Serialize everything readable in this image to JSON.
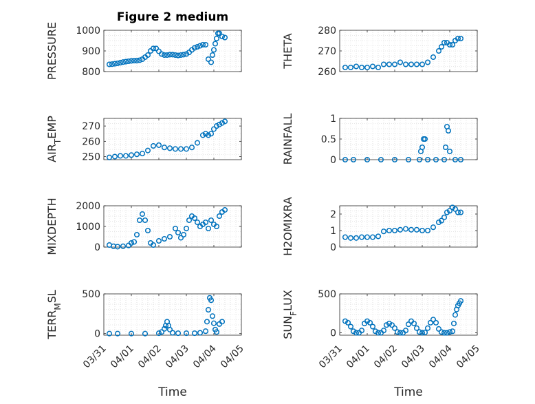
{
  "title": "Figure 2 medium",
  "xlabel": "Time",
  "xticks": [
    "03/31",
    "04/01",
    "04/02",
    "04/03",
    "04/04",
    "04/05"
  ],
  "marker_color": "#0072BD",
  "chart_data": [
    {
      "type": "scatter",
      "ylabel": "PRESSURE",
      "ylim": [
        800,
        1000
      ],
      "yticks": [
        "800",
        "900",
        "1000"
      ],
      "x": [
        0.2,
        0.3,
        0.4,
        0.5,
        0.6,
        0.7,
        0.8,
        0.9,
        1.0,
        1.1,
        1.2,
        1.3,
        1.4,
        1.5,
        1.6,
        1.7,
        1.8,
        1.9,
        2.0,
        2.1,
        2.2,
        2.3,
        2.4,
        2.5,
        2.6,
        2.7,
        2.8,
        2.9,
        3.0,
        3.1,
        3.2,
        3.3,
        3.4,
        3.5,
        3.6,
        3.7,
        3.8,
        3.9,
        3.95,
        4.0,
        4.05,
        4.1,
        4.15,
        4.2,
        4.3,
        4.4
      ],
      "y": [
        835,
        836,
        838,
        840,
        843,
        846,
        848,
        850,
        852,
        853,
        853,
        855,
        860,
        870,
        880,
        900,
        912,
        912,
        898,
        885,
        880,
        880,
        882,
        882,
        880,
        878,
        880,
        882,
        885,
        893,
        905,
        915,
        920,
        925,
        930,
        930,
        860,
        845,
        880,
        905,
        935,
        960,
        985,
        985,
        970,
        965
      ]
    },
    {
      "type": "scatter",
      "ylabel": "THETA",
      "ylim": [
        260,
        280
      ],
      "yticks": [
        "260",
        "270",
        "280"
      ],
      "x": [
        0.2,
        0.4,
        0.6,
        0.8,
        1.0,
        1.2,
        1.4,
        1.6,
        1.8,
        2.0,
        2.2,
        2.4,
        2.6,
        2.8,
        3.0,
        3.2,
        3.4,
        3.6,
        3.7,
        3.8,
        3.9,
        4.0,
        4.1,
        4.2,
        4.3,
        4.4
      ],
      "y": [
        262,
        262,
        262.5,
        262,
        262,
        262.5,
        262,
        263.5,
        263.5,
        263.5,
        264.5,
        263.5,
        263.5,
        263.5,
        263.5,
        264.5,
        267,
        270,
        272,
        274,
        274,
        273,
        273,
        275,
        276,
        276
      ]
    },
    {
      "type": "scatter",
      "ylabel": "AIR_TEMP",
      "ylim": [
        248,
        275
      ],
      "yticks": [
        "250",
        "260",
        "270"
      ],
      "x": [
        0.2,
        0.4,
        0.6,
        0.8,
        1.0,
        1.2,
        1.4,
        1.6,
        1.8,
        2.0,
        2.2,
        2.4,
        2.6,
        2.8,
        3.0,
        3.2,
        3.4,
        3.6,
        3.7,
        3.8,
        3.9,
        4.0,
        4.1,
        4.2,
        4.3,
        4.4
      ],
      "y": [
        249.5,
        250,
        250.5,
        250.5,
        251,
        251.5,
        252,
        254,
        257,
        257.5,
        256,
        255.5,
        255,
        255,
        255,
        256,
        259,
        264,
        265,
        264,
        265,
        268,
        270,
        271,
        272,
        273
      ]
    },
    {
      "type": "scatter",
      "ylabel": "RAINFALL",
      "ylim": [
        0,
        1
      ],
      "yticks": [
        "0",
        "0.5",
        "1"
      ],
      "x": [
        0.2,
        0.5,
        1.0,
        1.5,
        2.0,
        2.5,
        2.9,
        2.95,
        3.0,
        3.05,
        3.1,
        3.2,
        3.5,
        3.8,
        3.85,
        3.9,
        3.95,
        4.0,
        4.2,
        4.4
      ],
      "y": [
        0,
        0,
        0,
        0,
        0,
        0,
        0,
        0.2,
        0.3,
        0.5,
        0.5,
        0,
        0,
        0,
        0.3,
        0.8,
        0.7,
        0.2,
        0,
        0
      ]
    },
    {
      "type": "scatter",
      "ylabel": "MIXDEPTH",
      "ylim": [
        0,
        2000
      ],
      "yticks": [
        "0",
        "1000",
        "2000"
      ],
      "x": [
        0.2,
        0.35,
        0.5,
        0.7,
        0.9,
        1.0,
        1.1,
        1.2,
        1.3,
        1.4,
        1.5,
        1.6,
        1.7,
        1.8,
        2.0,
        2.2,
        2.4,
        2.6,
        2.7,
        2.8,
        2.9,
        3.0,
        3.1,
        3.2,
        3.3,
        3.4,
        3.5,
        3.6,
        3.7,
        3.8,
        3.9,
        4.0,
        4.1,
        4.2,
        4.3,
        4.4
      ],
      "y": [
        100,
        40,
        20,
        40,
        80,
        200,
        250,
        600,
        1300,
        1600,
        1300,
        800,
        200,
        100,
        300,
        400,
        500,
        900,
        700,
        450,
        600,
        900,
        1300,
        1500,
        1400,
        1200,
        1000,
        1100,
        1200,
        900,
        1300,
        1100,
        1000,
        1500,
        1700,
        1800
      ]
    },
    {
      "type": "scatter",
      "ylabel": "H2OMIXRA",
      "ylim": [
        0,
        2.5
      ],
      "yticks": [
        "0",
        "1",
        "2"
      ],
      "x": [
        0.2,
        0.4,
        0.6,
        0.8,
        1.0,
        1.2,
        1.4,
        1.6,
        1.8,
        2.0,
        2.2,
        2.4,
        2.6,
        2.8,
        3.0,
        3.2,
        3.4,
        3.6,
        3.7,
        3.8,
        3.9,
        4.0,
        4.1,
        4.2,
        4.3,
        4.4
      ],
      "y": [
        0.6,
        0.55,
        0.55,
        0.6,
        0.6,
        0.6,
        0.65,
        0.95,
        1.0,
        1.0,
        1.05,
        1.1,
        1.05,
        1.05,
        1.0,
        1.0,
        1.2,
        1.5,
        1.6,
        1.8,
        2.1,
        2.2,
        2.4,
        2.3,
        2.1,
        2.1
      ]
    },
    {
      "type": "scatter",
      "ylabel": "TERR_MSL",
      "ylim": [
        -20,
        500
      ],
      "yticks": [
        "0",
        "500"
      ],
      "x": [
        0.2,
        0.5,
        1.0,
        1.5,
        2.0,
        2.1,
        2.2,
        2.25,
        2.3,
        2.35,
        2.4,
        2.5,
        2.7,
        3.0,
        3.3,
        3.5,
        3.7,
        3.75,
        3.8,
        3.85,
        3.9,
        3.95,
        4.0,
        4.05,
        4.1,
        4.2,
        4.3
      ],
      "y": [
        0,
        0,
        0,
        0,
        5,
        20,
        60,
        100,
        150,
        100,
        50,
        10,
        5,
        5,
        5,
        10,
        30,
        150,
        300,
        450,
        420,
        220,
        130,
        50,
        20,
        120,
        150
      ]
    },
    {
      "type": "scatter",
      "ylabel": "SUN_FLUX",
      "ylim": [
        -30,
        500
      ],
      "yticks": [
        "0",
        "500"
      ],
      "x": [
        0.2,
        0.3,
        0.4,
        0.5,
        0.6,
        0.7,
        0.8,
        0.9,
        1.0,
        1.1,
        1.2,
        1.3,
        1.4,
        1.5,
        1.6,
        1.7,
        1.8,
        1.9,
        2.0,
        2.1,
        2.2,
        2.3,
        2.4,
        2.5,
        2.6,
        2.7,
        2.8,
        2.9,
        3.0,
        3.1,
        3.2,
        3.3,
        3.4,
        3.5,
        3.6,
        3.7,
        3.8,
        3.9,
        4.0,
        4.1,
        4.15,
        4.2,
        4.25,
        4.3,
        4.35,
        4.4
      ],
      "y": [
        150,
        130,
        80,
        20,
        0,
        0,
        30,
        120,
        150,
        130,
        80,
        20,
        0,
        0,
        30,
        100,
        120,
        100,
        60,
        10,
        0,
        0,
        30,
        110,
        150,
        120,
        60,
        10,
        0,
        5,
        60,
        130,
        170,
        130,
        50,
        10,
        0,
        0,
        10,
        20,
        120,
        230,
        300,
        350,
        380,
        410
      ]
    }
  ]
}
